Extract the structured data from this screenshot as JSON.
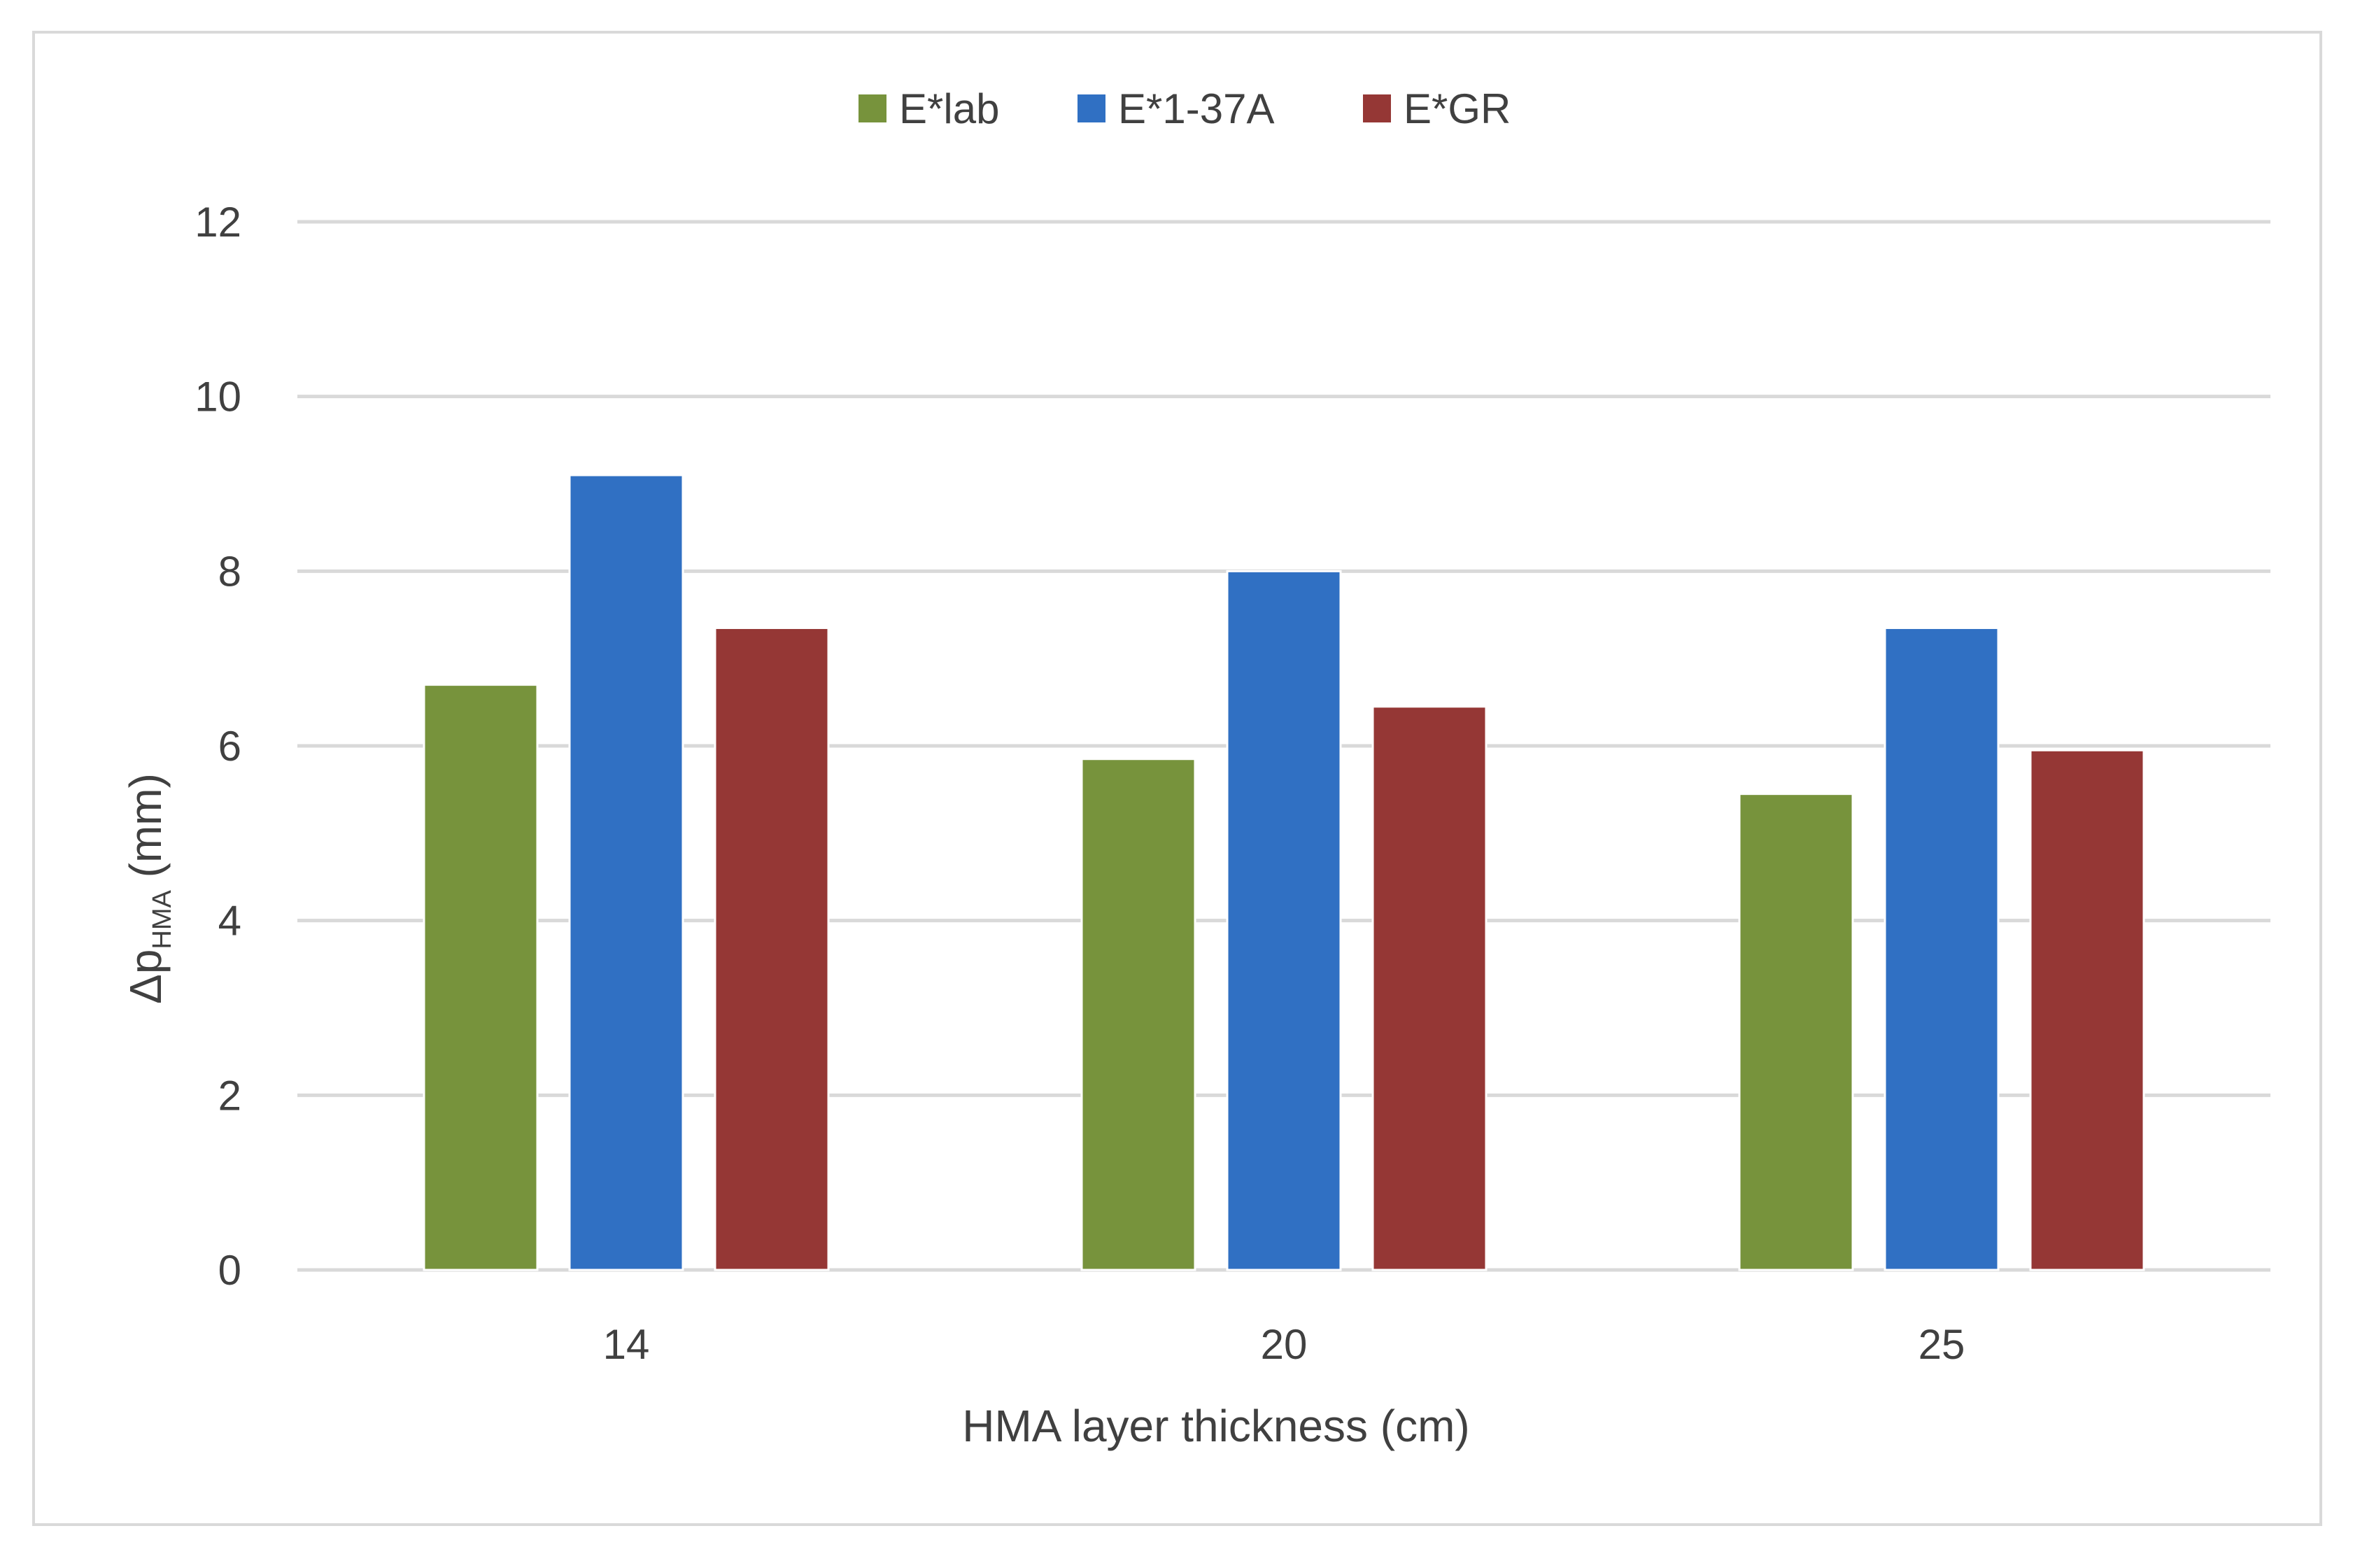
{
  "chart_data": {
    "type": "bar",
    "categories": [
      "14",
      "20",
      "25"
    ],
    "series": [
      {
        "name": "E*lab",
        "color": "#77933c",
        "values": [
          6.7,
          5.85,
          5.45
        ]
      },
      {
        "name": "E*1-37A",
        "color": "#3070c3",
        "values": [
          9.1,
          8.0,
          7.35
        ]
      },
      {
        "name": "E*GR",
        "color": "#953735",
        "values": [
          7.35,
          6.45,
          5.95
        ]
      }
    ],
    "xlabel": "HMA layer thickness (cm)",
    "ylabel": {
      "prefix": "Δp",
      "subscript": "HMA",
      "suffix": " (mm)"
    },
    "ylim": [
      0,
      12
    ],
    "yticks": [
      0,
      2,
      4,
      6,
      8,
      10,
      12
    ],
    "grid": true,
    "legend_position": "top"
  }
}
